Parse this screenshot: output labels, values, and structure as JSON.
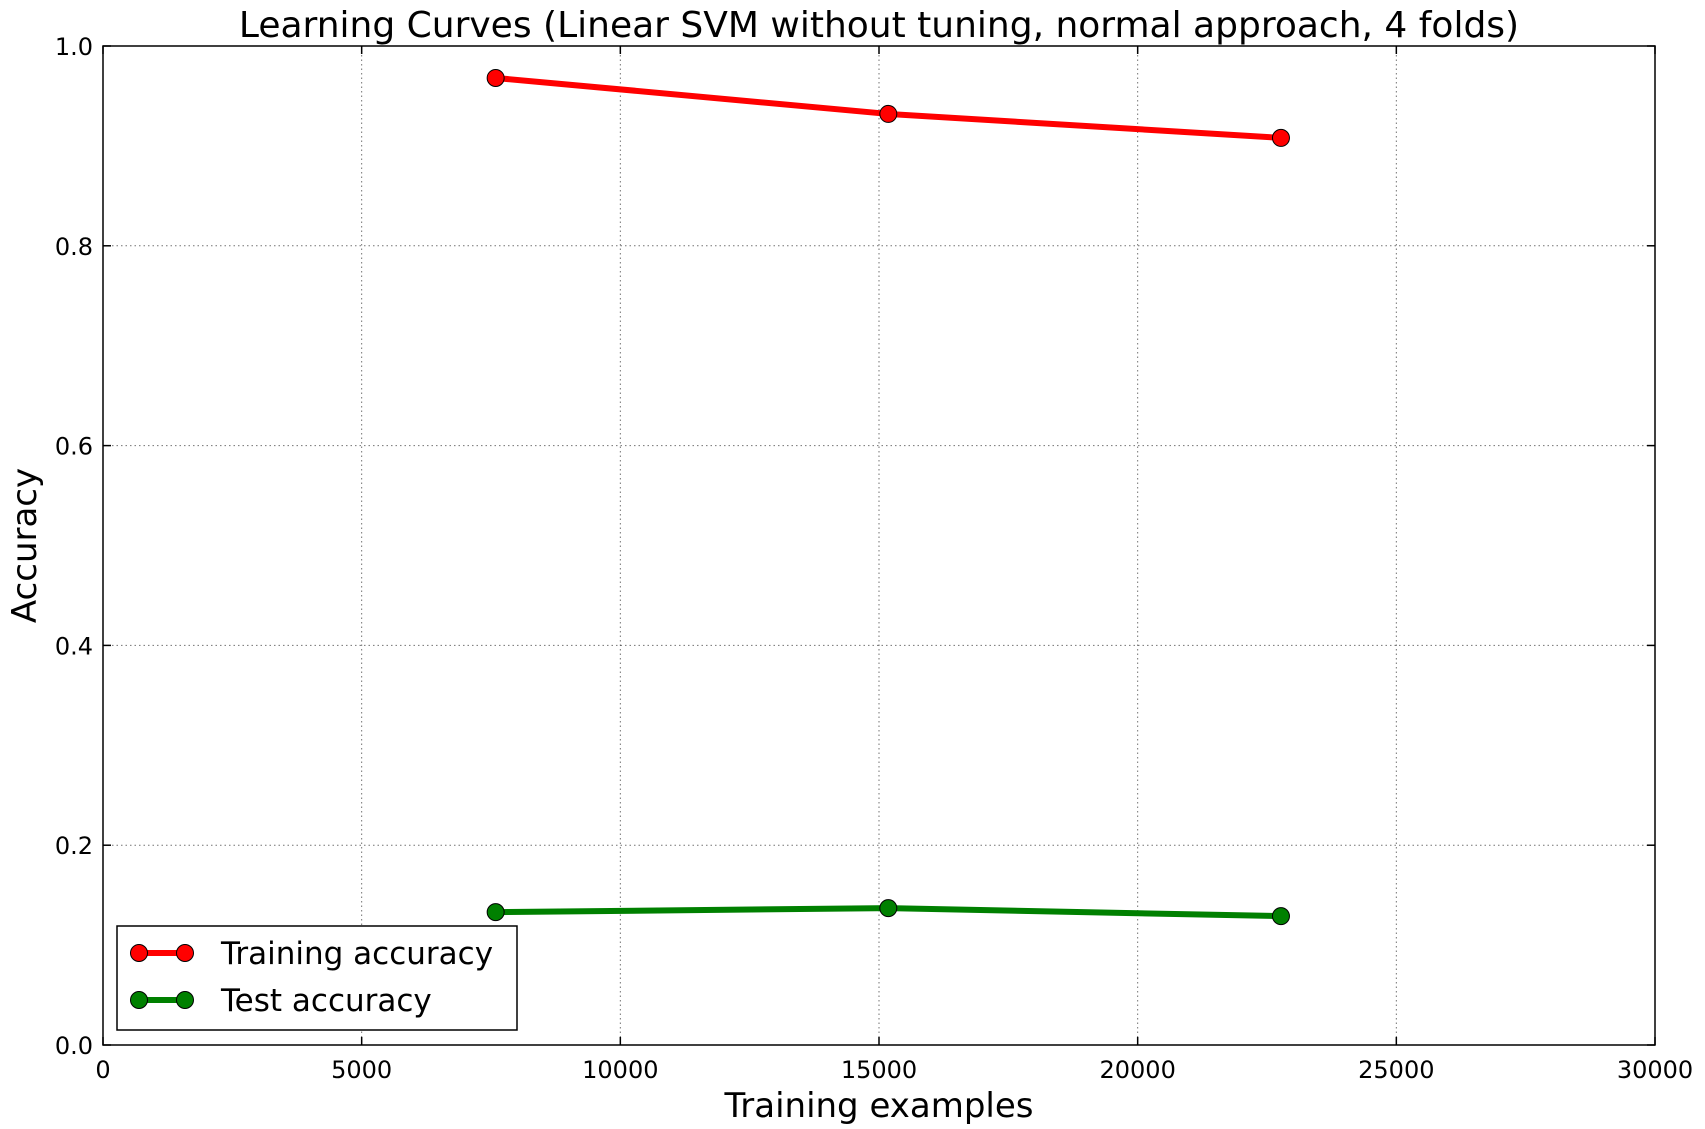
{
  "chart_data": {
    "type": "line",
    "title": "Learning Curves (Linear SVM without tuning, normal approach, 4 folds)",
    "xlabel": "Training examples",
    "ylabel": "Accuracy",
    "xlim": [
      0,
      30000
    ],
    "ylim": [
      0.0,
      1.0
    ],
    "xticks": [
      0,
      5000,
      10000,
      15000,
      20000,
      25000,
      30000
    ],
    "xtick_labels": [
      "0",
      "5000",
      "10000",
      "15000",
      "20000",
      "25000",
      "30000"
    ],
    "yticks": [
      0.0,
      0.2,
      0.4,
      0.6,
      0.8,
      1.0
    ],
    "ytick_labels": [
      "0.0",
      "0.2",
      "0.4",
      "0.6",
      "0.8",
      "1.0"
    ],
    "grid": true,
    "legend_position": "lower-left",
    "x": [
      7590,
      15180,
      22770
    ],
    "series": [
      {
        "name": "Training accuracy",
        "color": "#ff0000",
        "marker": "circle",
        "values": [
          0.968,
          0.932,
          0.908
        ]
      },
      {
        "name": "Test accuracy",
        "color": "#008000",
        "marker": "circle",
        "values": [
          0.133,
          0.137,
          0.129
        ]
      }
    ]
  }
}
